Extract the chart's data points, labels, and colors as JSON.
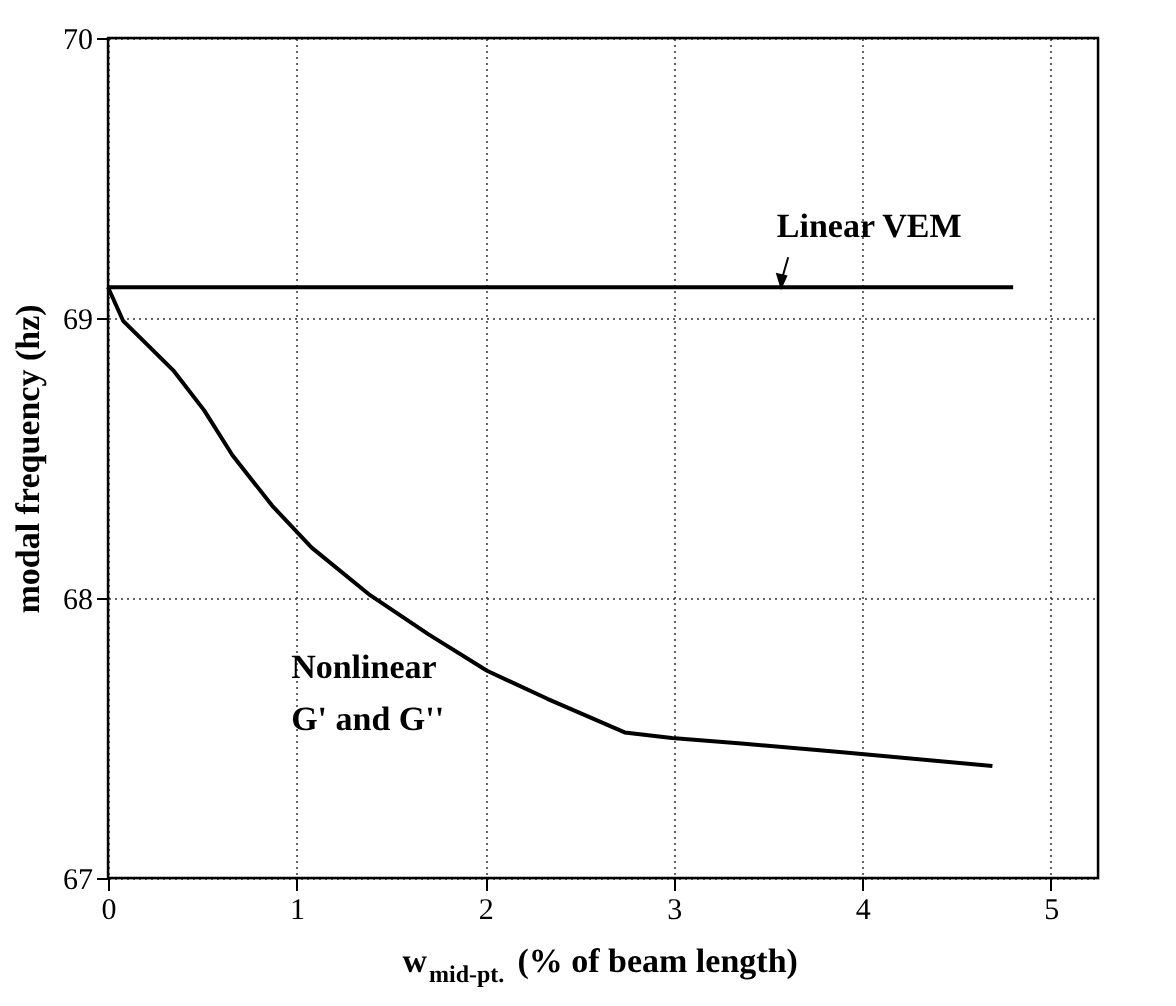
{
  "chart_data": {
    "type": "line",
    "xlabel": "w$_{mid-pt.}$ (% of beam length)",
    "ylabel": "modal frequency (hz)",
    "xlim": [
      0,
      5.25
    ],
    "ylim": [
      67,
      70
    ],
    "xticks": [
      {
        "value": 0,
        "label": "0"
      },
      {
        "value": 1,
        "label": "1"
      },
      {
        "value": 2,
        "label": "2"
      },
      {
        "value": 3,
        "label": "3"
      },
      {
        "value": 4,
        "label": "4"
      },
      {
        "value": 5,
        "label": "5"
      }
    ],
    "yticks": [
      {
        "value": 67,
        "label": "67"
      },
      {
        "value": 68,
        "label": "68"
      },
      {
        "value": 69,
        "label": "69"
      },
      {
        "value": 70,
        "label": "70"
      }
    ],
    "grid": true,
    "line_style": "solid",
    "marker": "none",
    "series": [
      {
        "color": "#000000",
        "x": [
          0,
          4.8
        ],
        "values": [
          69.11,
          69.11
        ]
      },
      {
        "color": "#000000",
        "x": [
          0,
          0.08,
          0.2,
          0.35,
          0.51,
          0.66,
          0.87,
          1.08,
          1.39,
          1.7,
          2.01,
          2.33,
          2.74,
          2.99,
          3.36,
          3.88,
          4.69
        ],
        "values": [
          69.11,
          68.99,
          68.91,
          68.81,
          68.67,
          68.51,
          68.33,
          68.18,
          68.01,
          67.87,
          67.74,
          67.64,
          67.52,
          67.5,
          67.48,
          67.45,
          67.4
        ]
      }
    ],
    "annotations": [
      {
        "text": "Linear VEM",
        "x": 3.57,
        "y": 69.11
      },
      "Nonlinear\nG' and G''"
    ]
  }
}
